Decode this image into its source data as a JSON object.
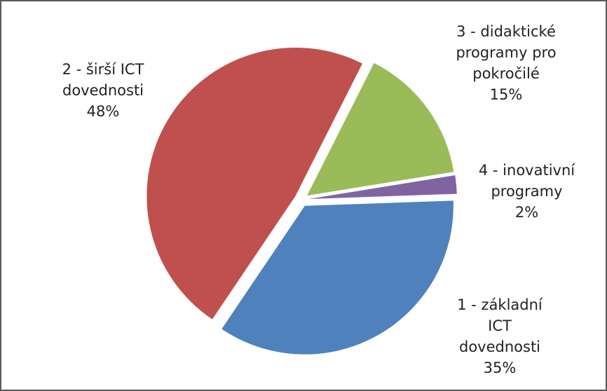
{
  "chart_data": {
    "type": "pie",
    "categories": [
      "1 - základní ICT dovednosti",
      "2 - širší ICT dovednosti",
      "3 - didaktické programy pro pokročilé",
      "4 - inovativní programy"
    ],
    "values": [
      35,
      48,
      15,
      2
    ],
    "value_labels": [
      "35%",
      "48%",
      "15%",
      "2%"
    ],
    "colors": [
      "#4f81bd",
      "#c0504d",
      "#9bbb59",
      "#8064a2"
    ]
  }
}
